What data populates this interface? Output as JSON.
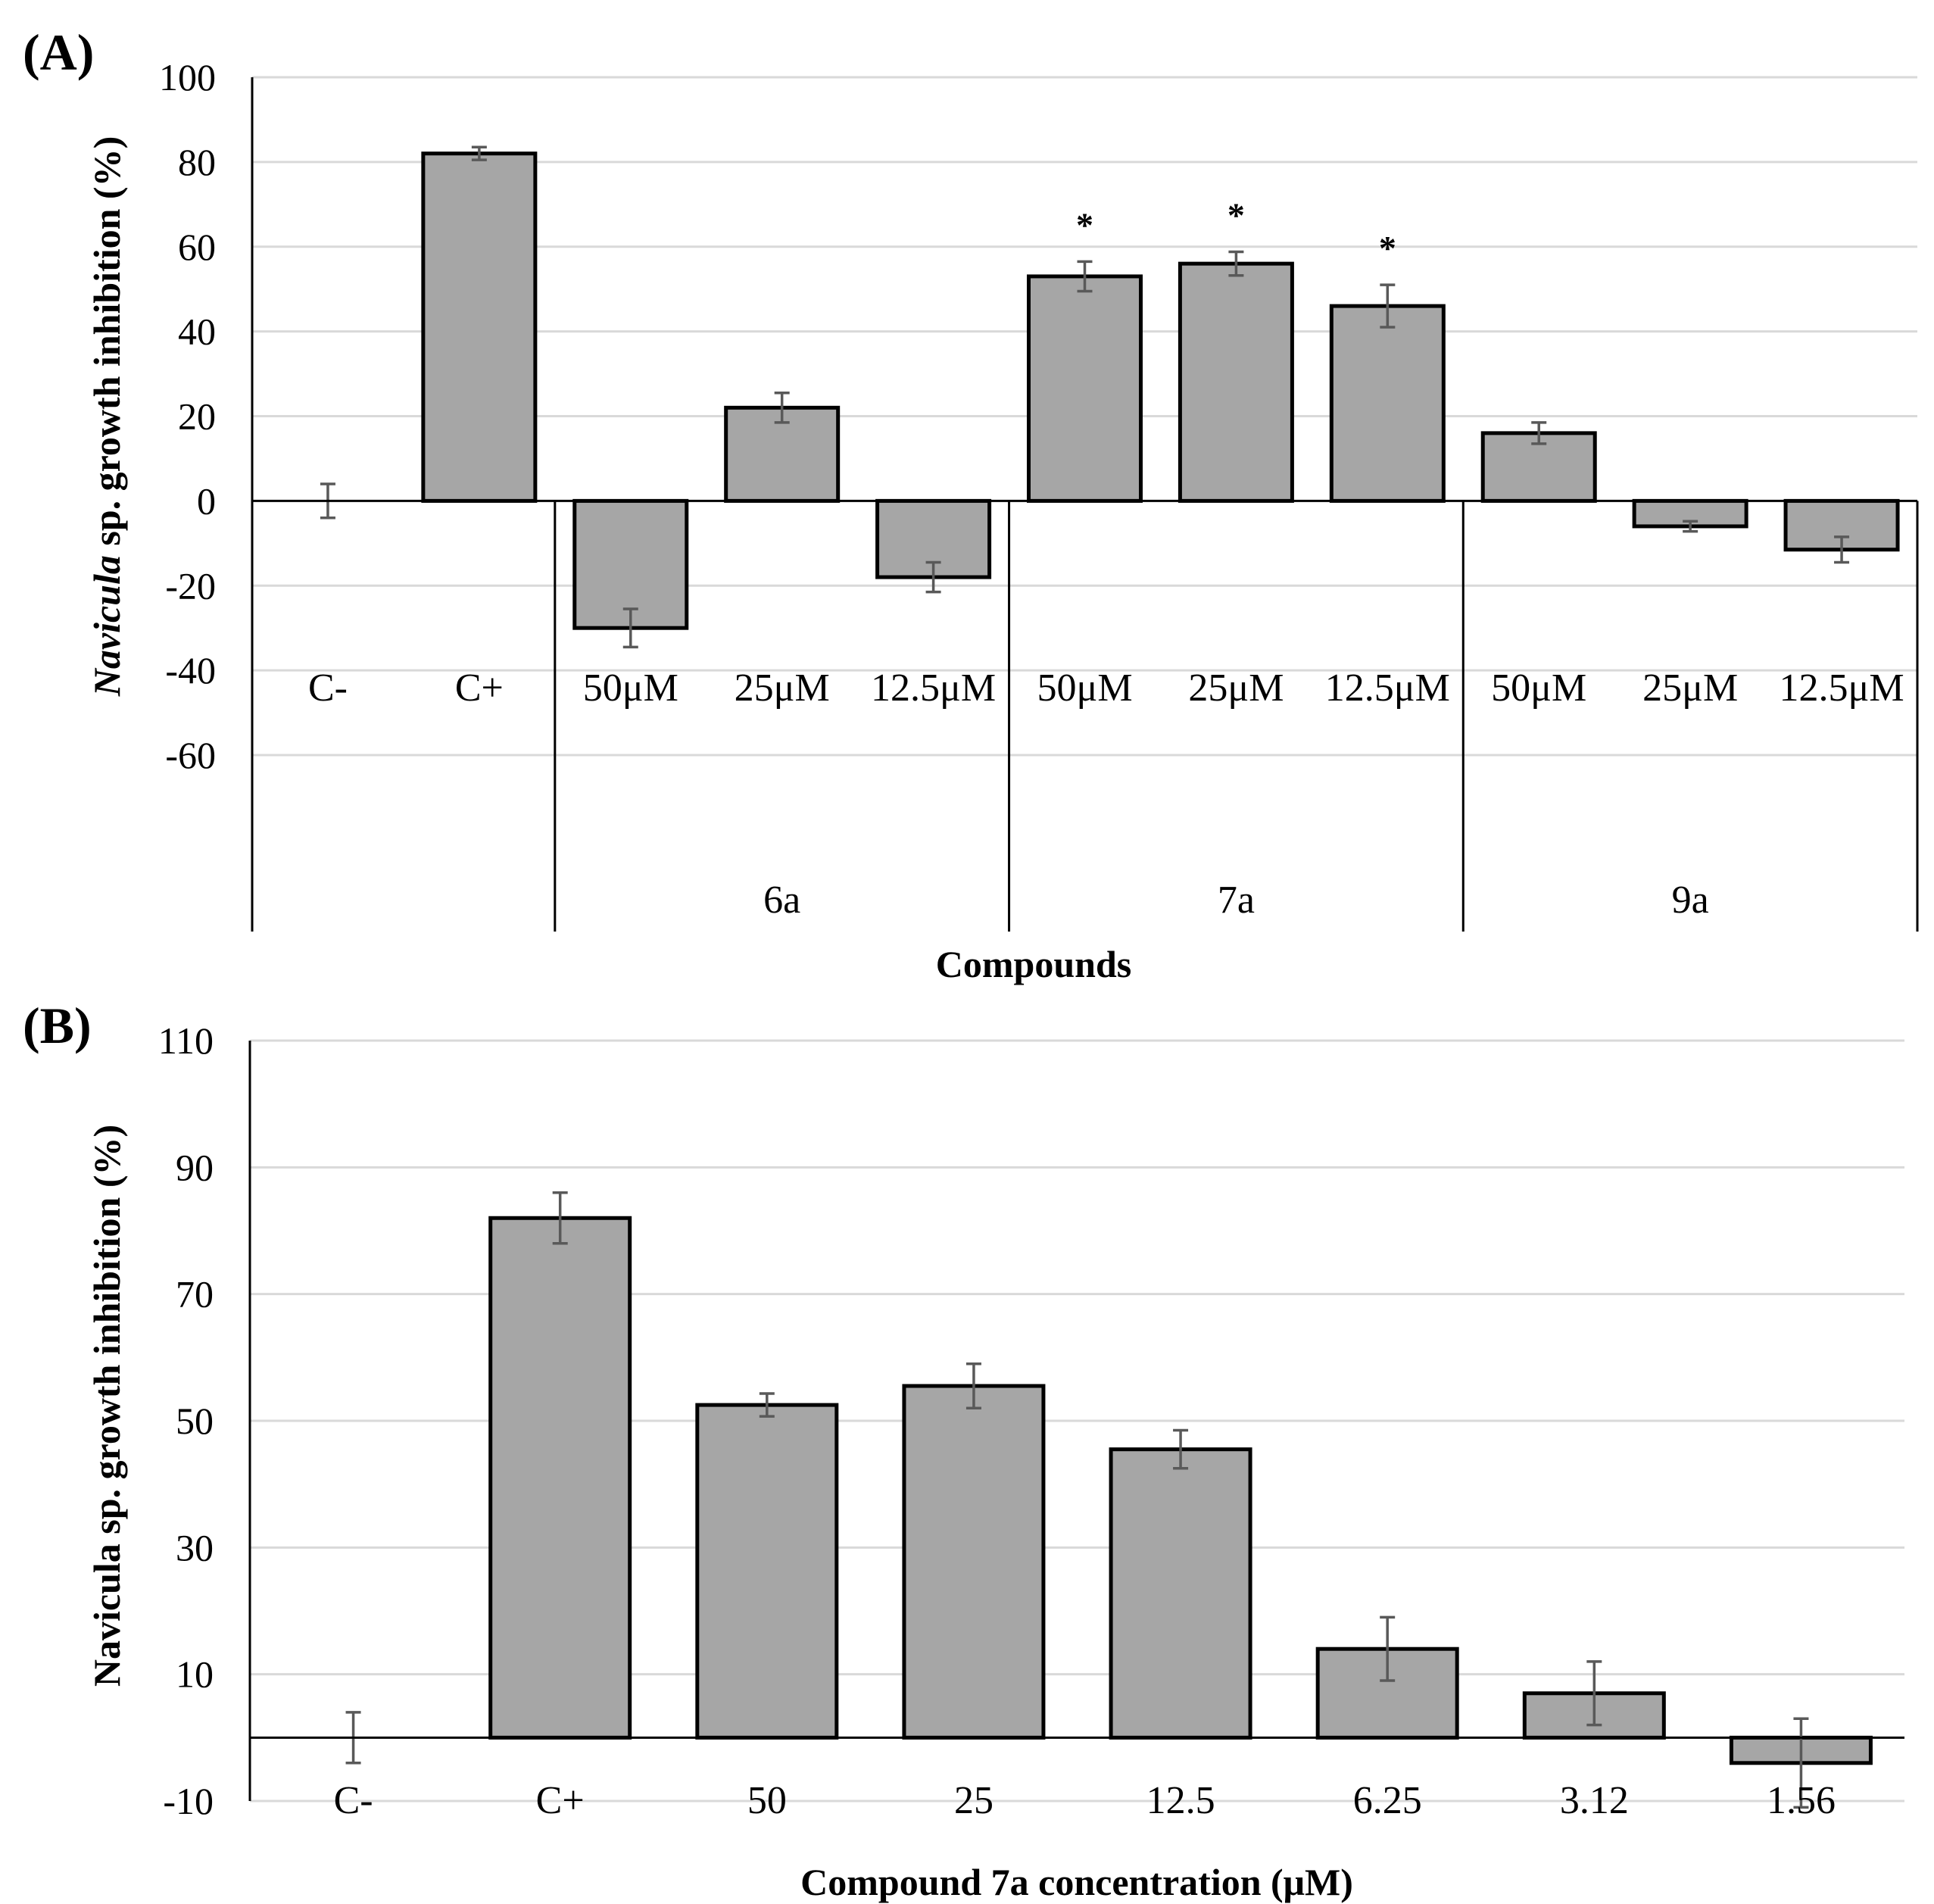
{
  "chart_data": [
    {
      "type": "bar",
      "panel_label": "(A)",
      "ylabel_italic": "Navicula",
      "ylabel_rest": " sp. growth inhibition (%)",
      "xlabel": "Compounds",
      "ylim": [
        -60,
        100
      ],
      "yticks": [
        100,
        80,
        60,
        40,
        20,
        0,
        -20,
        -40,
        -60
      ],
      "categories": [
        "C-",
        "C+",
        "50μM",
        "25μM",
        "12.5μM",
        "50μM",
        "25μM",
        "12.5μM",
        "50μM",
        "25μM",
        "12.5μM"
      ],
      "values": [
        0,
        82,
        -30,
        22,
        -18,
        53,
        56,
        46,
        16,
        -6,
        -11.5
      ],
      "errors": [
        4,
        1.5,
        4.5,
        3.5,
        3.5,
        3.5,
        2.8,
        5,
        2.5,
        1.2,
        3
      ],
      "significance": [
        "",
        "",
        "",
        "",
        "",
        "*",
        "*",
        "*",
        "",
        "",
        ""
      ],
      "groups": [
        {
          "label": "",
          "from": 0,
          "to": 1
        },
        {
          "label": "6a",
          "from": 2,
          "to": 4
        },
        {
          "label": "7a",
          "from": 5,
          "to": 7
        },
        {
          "label": "9a",
          "from": 8,
          "to": 10
        }
      ]
    },
    {
      "type": "bar",
      "panel_label": "(B)",
      "ylabel": "Navicula sp. growth inhibition (%)",
      "xlabel": "Compound 7a concentration (μM)",
      "ylim": [
        -10,
        110
      ],
      "yticks": [
        110,
        90,
        70,
        50,
        30,
        10,
        -10
      ],
      "categories": [
        "C-",
        "C+",
        "50",
        "25",
        "12.5",
        "6.25",
        "3.12",
        "1.56"
      ],
      "values": [
        0,
        82,
        52.5,
        55.5,
        45.5,
        14,
        7,
        -4
      ],
      "errors": [
        4,
        4,
        1.8,
        3.5,
        3,
        5,
        5,
        7
      ]
    }
  ]
}
